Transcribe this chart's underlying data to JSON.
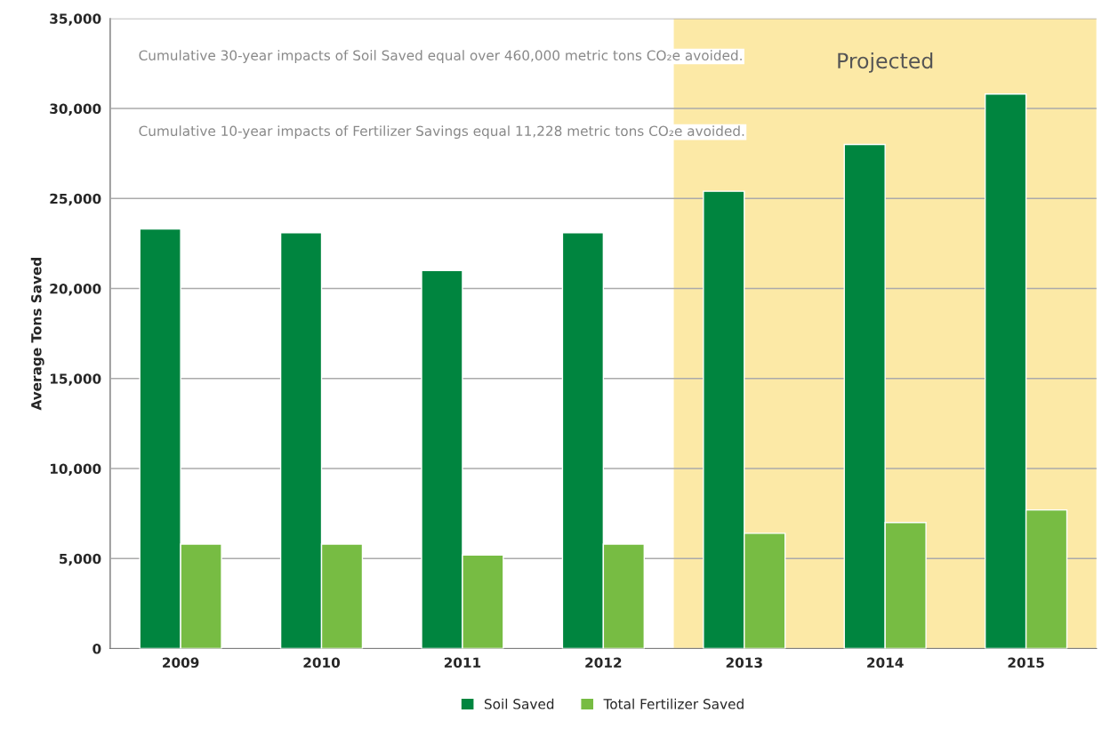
{
  "chart_data": {
    "type": "bar",
    "ylabel": "Average Tons Saved",
    "categories": [
      "2009",
      "2010",
      "2011",
      "2012",
      "2013",
      "2014",
      "2015"
    ],
    "series": [
      {
        "name": "Soil Saved",
        "color": "#00853f",
        "values": [
          23300,
          23100,
          21000,
          23100,
          25400,
          28000,
          30800
        ]
      },
      {
        "name": "Total Fertilizer Saved",
        "color": "#77bc43",
        "values": [
          5800,
          5800,
          5200,
          5800,
          6400,
          7000,
          7700
        ]
      }
    ],
    "ylim": [
      0,
      35000
    ],
    "yticks": [
      {
        "value": 0,
        "label": "0"
      },
      {
        "value": 5000,
        "label": "5,000"
      },
      {
        "value": 10000,
        "label": "10,000"
      },
      {
        "value": 15000,
        "label": "15,000"
      },
      {
        "value": 20000,
        "label": "20,000"
      },
      {
        "value": 25000,
        "label": "25,000"
      },
      {
        "value": 30000,
        "label": "30,000"
      },
      {
        "value": 35000,
        "label": "35,000"
      }
    ],
    "bands": [
      {
        "axis": "x",
        "from": "2013",
        "to": "2015",
        "label": "Projected",
        "color": "#fce9a6"
      }
    ],
    "annotations": [
      "Cumulative 30-year impacts of Soil Saved equal over 460,000 metric tons CO₂e avoided.",
      "Cumulative 10-year impacts of Fertilizer Savings equal 11,228 metric tons CO₂e avoided."
    ],
    "grid": "y",
    "legend": "bottom"
  }
}
